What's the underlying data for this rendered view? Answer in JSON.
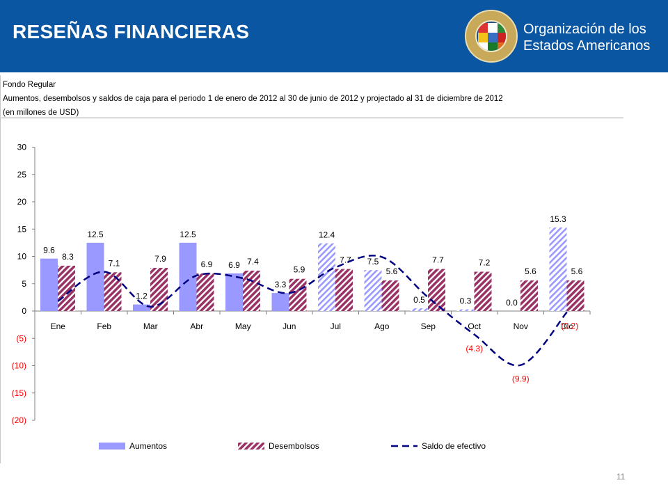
{
  "header": {
    "title": "RESEÑAS FINANCIERAS",
    "org_line1": "Organización de los",
    "org_line2": "Estados Americanos",
    "bg_color": "#0b56a3"
  },
  "description": {
    "line1": "Fondo Regular",
    "line2": "Aumentos, desembolsos y saldos de caja para el periodo 1 de enero de 2012 al 30 de junio de 2012 y projectado al 31 de diciembre de 2012",
    "line3": "(en millones de USD)"
  },
  "chart_data": {
    "type": "bar",
    "categories": [
      "Ene",
      "Feb",
      "Mar",
      "Abr",
      "May",
      "Jun",
      "Jul",
      "Ago",
      "Sep",
      "Oct",
      "Nov",
      "Dic"
    ],
    "series": [
      {
        "name": "Aumentos",
        "kind": "bar",
        "color": "#9999ff",
        "values": [
          9.6,
          12.5,
          1.2,
          12.5,
          6.9,
          3.3,
          12.4,
          7.5,
          0.5,
          0.3,
          0.0,
          15.3
        ],
        "labels": [
          "9.6",
          "12.5",
          "1.2",
          "12.5",
          "6.9",
          "3.3",
          "12.4",
          "7.5",
          "0.5",
          "0.3",
          "0.0",
          "15.3"
        ]
      },
      {
        "name": "Desembolsos",
        "kind": "bar",
        "color": "#993366",
        "values": [
          8.3,
          7.1,
          7.9,
          6.9,
          7.4,
          5.9,
          7.7,
          5.6,
          7.7,
          7.2,
          5.6,
          5.6
        ],
        "labels": [
          "8.3",
          "7.1",
          "7.9",
          "6.9",
          "7.4",
          "5.9",
          "7.7",
          "5.6",
          "7.7",
          "7.2",
          "5.6",
          "5.6"
        ]
      },
      {
        "name": "Saldo de efectivo",
        "kind": "line",
        "color": "#000080",
        "dash": "dashed",
        "values": [
          1.8,
          7.2,
          0.8,
          6.5,
          6.0,
          3.3,
          8.0,
          9.9,
          2.5,
          -4.3,
          -9.9,
          -0.2
        ],
        "labels": [
          "",
          "",
          "",
          "",
          "",
          "",
          "",
          "",
          "",
          "(4.3)",
          "(9.9)",
          "(0.2)"
        ]
      }
    ],
    "projected_from_index": 6,
    "ylim": [
      -20,
      30
    ],
    "yticks": [
      30,
      25,
      20,
      15,
      10,
      5,
      0,
      -5,
      -10,
      -15,
      -20
    ],
    "ytick_labels": [
      "30",
      "25",
      "20",
      "15",
      "10",
      "5",
      "0",
      "(5)",
      "(10)",
      "(15)",
      "(20)"
    ],
    "negative_label_color": "#ff0000",
    "title": "",
    "xlabel": "",
    "ylabel": "",
    "grid": false,
    "legend_position": "bottom"
  },
  "footer": {
    "page_number": "11"
  }
}
